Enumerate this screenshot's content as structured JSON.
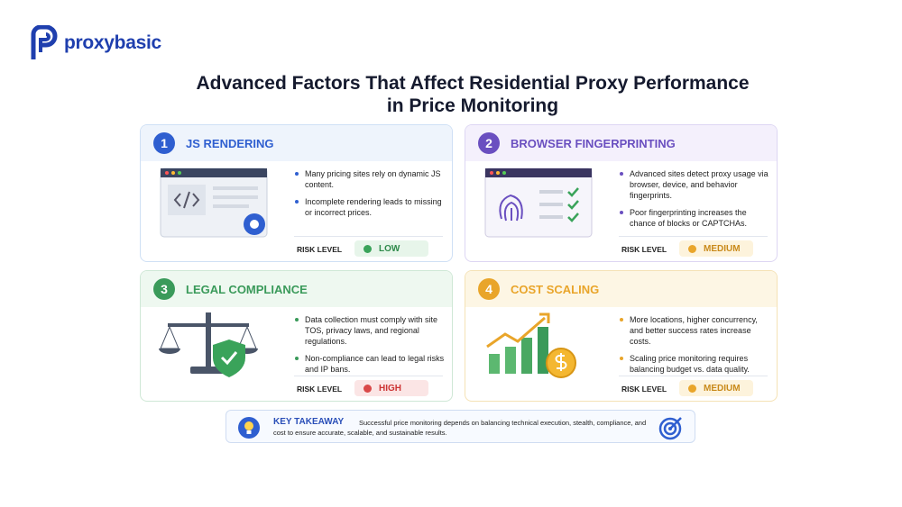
{
  "logo": "proxybasic",
  "title_lines": [
    "Advanced Factors That Affect Residential Proxy Performance",
    "in Price Monitoring"
  ],
  "cards": [
    {
      "number": "1",
      "title": "JS RENDERING",
      "bullets": [
        "Many pricing sites rely on dynamic JS content.",
        "Incomplete rendering leads to missing or incorrect prices."
      ],
      "risk_label": "RISK LEVEL",
      "risk_value": "LOW"
    },
    {
      "number": "2",
      "title": "BROWSER FINGERPRINTING",
      "bullets": [
        "Advanced sites detect proxy usage via browser, device, and behavior fingerprints.",
        "Poor fingerprinting increases the chance of blocks or CAPTCHAs."
      ],
      "risk_label": "RISK LEVEL",
      "risk_value": "MEDIUM"
    },
    {
      "number": "3",
      "title": "LEGAL COMPLIANCE",
      "bullets": [
        "Data collection must comply with site TOS, privacy laws, and regional regulations.",
        "Non-compliance can lead to legal risks and IP bans."
      ],
      "risk_label": "RISK LEVEL",
      "risk_value": "HIGH"
    },
    {
      "number": "4",
      "title": "COST SCALING",
      "bullets": [
        "More locations, higher concurrency, and better success rates increase costs.",
        "Scaling price monitoring requires balancing budget vs. data quality."
      ],
      "risk_label": "RISK LEVEL",
      "risk_value": "MEDIUM"
    }
  ],
  "takeaway": {
    "label": "KEY TAKEAWAY",
    "text": "Successful price monitoring depends on balancing technical execution, stealth, compliance, and cost to ensure accurate, scalable, and sustainable results."
  }
}
